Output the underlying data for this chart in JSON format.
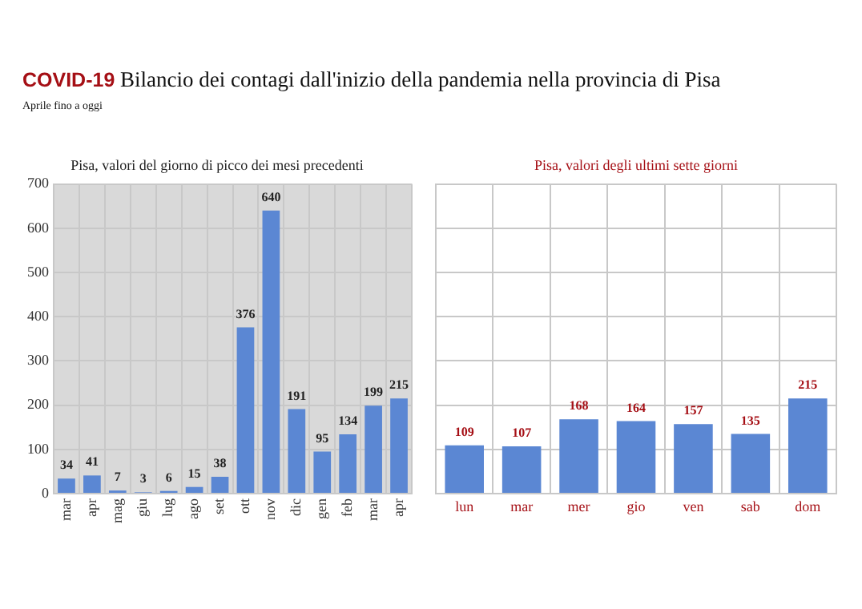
{
  "chart_data": [
    {
      "type": "bar",
      "title": "Pisa, valori del giorno di picco dei mesi precedenti",
      "annotations": [
        "COVID-19 Bilancio dei contagi dall'inizio della pandemia nella provincia di Pisa",
        "Aprile fino a oggi"
      ],
      "categories": [
        "mar",
        "apr",
        "mag",
        "giu",
        "lug",
        "ago",
        "set",
        "ott",
        "nov",
        "dic",
        "gen",
        "feb",
        "mar",
        "apr"
      ],
      "values": [
        34,
        41,
        7,
        3,
        6,
        15,
        38,
        376,
        640,
        191,
        95,
        134,
        199,
        215
      ],
      "color": "#5b87d3",
      "ylim": [
        0,
        700
      ],
      "yticks": [
        0,
        100,
        200,
        300,
        400,
        500,
        600,
        700
      ],
      "grid": true,
      "data_labels": true
    },
    {
      "type": "bar",
      "title": "Pisa, valori degli ultimi sette giorni",
      "categories": [
        "lun",
        "mar",
        "mer",
        "gio",
        "ven",
        "sab",
        "dom"
      ],
      "values": [
        109,
        107,
        168,
        164,
        157,
        135,
        215
      ],
      "color": "#5b87d3",
      "ylim": [
        0,
        700
      ],
      "yticks": [
        {
          "value": 0,
          "label": null
        },
        {
          "value": 100,
          "label": null
        },
        {
          "value": 200,
          "label": null
        },
        {
          "value": 300,
          "label": null
        },
        {
          "value": 400,
          "label": null
        },
        {
          "value": 500,
          "label": null
        },
        {
          "value": 600,
          "label": null
        },
        {
          "value": 700,
          "label": null
        }
      ],
      "grid": true,
      "data_labels": true,
      "tick_labels": "x"
    }
  ]
}
